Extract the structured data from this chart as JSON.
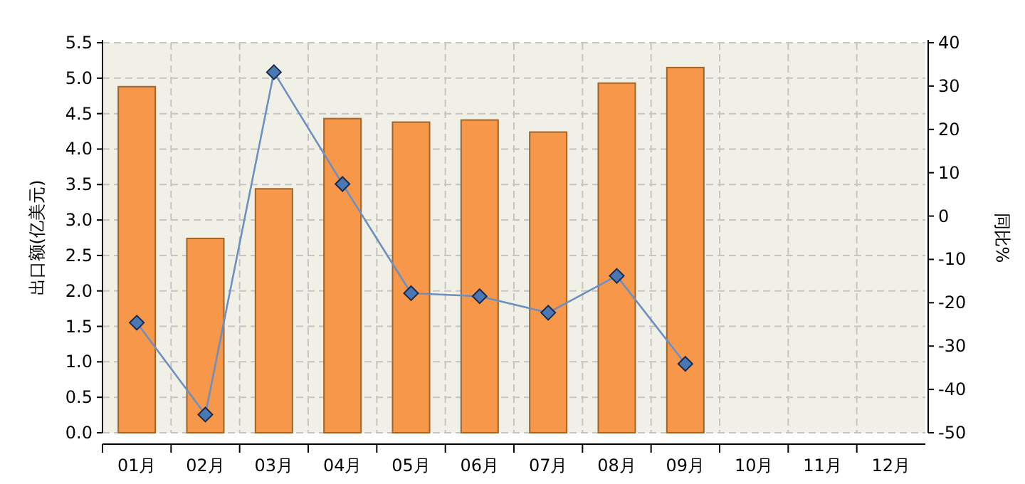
{
  "chart_data": {
    "type": "bar",
    "ylabel": "出口额(亿美元)",
    "y2label": "同比%",
    "categories": [
      "01月",
      "02月",
      "03月",
      "04月",
      "05月",
      "06月",
      "07月",
      "08月",
      "09月",
      "10月",
      "11月",
      "12月"
    ],
    "series": [
      {
        "color": "#f7974a",
        "values": [
          4.88,
          2.74,
          3.44,
          4.43,
          4.38,
          4.41,
          4.24,
          4.93,
          5.15,
          null,
          null,
          null
        ]
      },
      {
        "type": "line",
        "axis": "y2",
        "color": "#6f8fbf",
        "marker": "diamond",
        "values": [
          -24.6,
          -45.8,
          33.2,
          7.4,
          -17.8,
          -18.5,
          -22.3,
          -13.8,
          -34.1,
          null,
          null,
          null
        ]
      }
    ],
    "ylim": [
      0,
      5.5
    ],
    "yticks": [
      {
        "value": 0,
        "label": "0.0"
      },
      0.5,
      {
        "value": 1,
        "label": "1.0"
      },
      1.5,
      {
        "value": 2,
        "label": "2.0"
      },
      2.5,
      {
        "value": 3,
        "label": "3.0"
      },
      3.5,
      {
        "value": 4,
        "label": "4.0"
      },
      4.5,
      {
        "value": 5,
        "label": "5.0"
      },
      5.5
    ],
    "y2lim": [
      -50,
      40
    ],
    "y2ticks": [
      -50,
      -40,
      -30,
      -20,
      -10,
      0,
      10,
      20,
      30,
      40
    ],
    "grid": true
  }
}
